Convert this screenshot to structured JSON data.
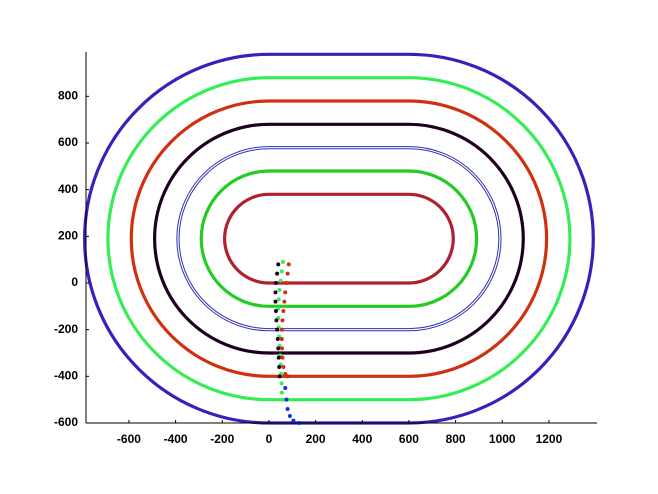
{
  "chart_data": {
    "type": "line",
    "xlim": [
      -784,
      1406
    ],
    "ylim": [
      -600,
      990
    ],
    "xticks": [
      -600,
      -400,
      -200,
      0,
      200,
      400,
      600,
      800,
      1000,
      1200
    ],
    "yticks": [
      -600,
      -400,
      -200,
      0,
      200,
      400,
      600,
      800
    ],
    "grid": false,
    "series": [
      {
        "shape": "stadium",
        "color": "#3322bb",
        "x": [
          0,
          600
        ],
        "y": [
          -600,
          980
        ],
        "double": false
      },
      {
        "shape": "stadium",
        "color": "#33ee55",
        "x": [
          0,
          600
        ],
        "y": [
          -500,
          880
        ],
        "double": false
      },
      {
        "shape": "stadium",
        "color": "#d03010",
        "x": [
          0,
          600
        ],
        "y": [
          -400,
          780
        ],
        "double": false
      },
      {
        "shape": "stadium",
        "color": "#200020",
        "x": [
          0,
          600
        ],
        "y": [
          -300,
          680
        ],
        "double": false
      },
      {
        "shape": "stadium",
        "color": "#3030b0",
        "x": [
          0,
          600
        ],
        "y": [
          -200,
          580
        ],
        "double": true
      },
      {
        "shape": "stadium",
        "color": "#22cc22",
        "x": [
          0,
          600
        ],
        "y": [
          -100,
          480
        ],
        "double": false
      },
      {
        "shape": "stadium",
        "color": "#b02030",
        "x": [
          0,
          600
        ],
        "y": [
          0,
          380
        ],
        "double": false
      },
      {
        "shape": "dots",
        "color": "#33ee55",
        "x": [
          60,
          55,
          50,
          45,
          42,
          40,
          40,
          42,
          44,
          46,
          48,
          50,
          52,
          54,
          56,
          60
        ],
        "y": [
          90,
          50,
          10,
          -30,
          -70,
          -110,
          -150,
          -190,
          -230,
          -270,
          -310,
          -350,
          -390,
          -430,
          -470,
          -500
        ]
      },
      {
        "shape": "dots",
        "color": "#200020",
        "x": [
          40,
          35,
          30,
          28,
          28,
          30,
          32,
          35,
          38,
          40,
          42,
          44,
          46
        ],
        "y": [
          80,
          40,
          0,
          -40,
          -80,
          -120,
          -160,
          -200,
          -240,
          -280,
          -320,
          -360,
          -400
        ]
      },
      {
        "shape": "dots",
        "color": "#d03010",
        "x": [
          85,
          80,
          75,
          70,
          66,
          62,
          58,
          56,
          55,
          56,
          58,
          62,
          70,
          80
        ],
        "y": [
          80,
          40,
          0,
          -40,
          -80,
          -120,
          -160,
          -200,
          -240,
          -280,
          -320,
          -360,
          -390,
          -400
        ]
      },
      {
        "shape": "dots",
        "color": "#1030ee",
        "x": [
          70,
          75,
          80,
          90,
          105,
          130
        ],
        "y": [
          -450,
          -500,
          -540,
          -570,
          -590,
          -600
        ]
      }
    ]
  }
}
